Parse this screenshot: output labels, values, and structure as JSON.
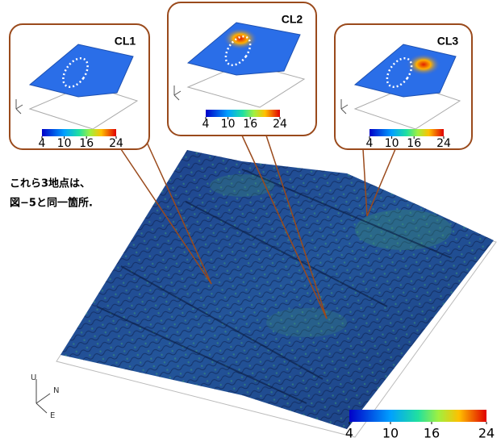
{
  "callouts": [
    {
      "label": "CL1"
    },
    {
      "label": "CL2"
    },
    {
      "label": "CL3"
    }
  ],
  "annotation": [
    "これら3地点は、",
    "図−5と同一箇所."
  ],
  "colorbar": {
    "range": [
      4,
      24
    ],
    "ticks": [
      4,
      10,
      16,
      24
    ]
  },
  "axes": {
    "up": "U",
    "north": "N",
    "east": "E"
  }
}
